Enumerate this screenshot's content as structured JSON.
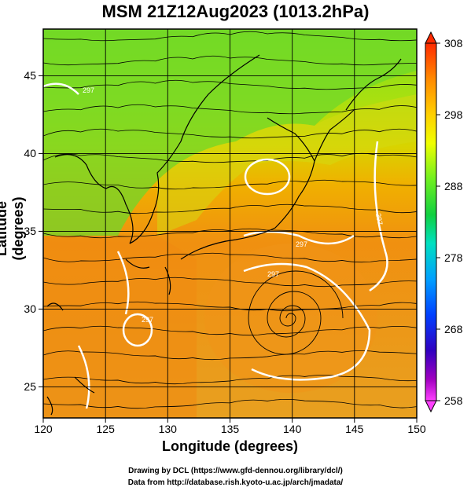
{
  "title": "MSM 21Z12Aug2023 (1013.2hPa)",
  "map": {
    "xlabel": "Longitude (degrees)",
    "ylabel": "Latitude  (degrees)",
    "lon_range": [
      120,
      150
    ],
    "lat_range": [
      23,
      48
    ],
    "x_ticks": [
      "120",
      "125",
      "130",
      "135",
      "140",
      "145",
      "150"
    ],
    "y_ticks": [
      "25",
      "30",
      "35",
      "40",
      "45"
    ],
    "grid": true,
    "contour_labels": [
      "297",
      "297",
      "297",
      "297",
      "297"
    ]
  },
  "colorbar": {
    "ticks": [
      "308",
      "298",
      "288",
      "278",
      "268",
      "258"
    ],
    "colors": [
      "#ff2a00",
      "#ff8a00",
      "#ffc000",
      "#f0ff00",
      "#9cff20",
      "#20e040",
      "#00e0c0",
      "#00a0ff",
      "#0040ff",
      "#3000c0",
      "#a000c0",
      "#ff40ff"
    ]
  },
  "credits": {
    "line1": "Drawing by DCL (https://www.gfd-dennou.org/library/dcl/)",
    "line2": "Data from http://database.rish.kyoto-u.ac.jp/arch/jmadata/"
  }
}
